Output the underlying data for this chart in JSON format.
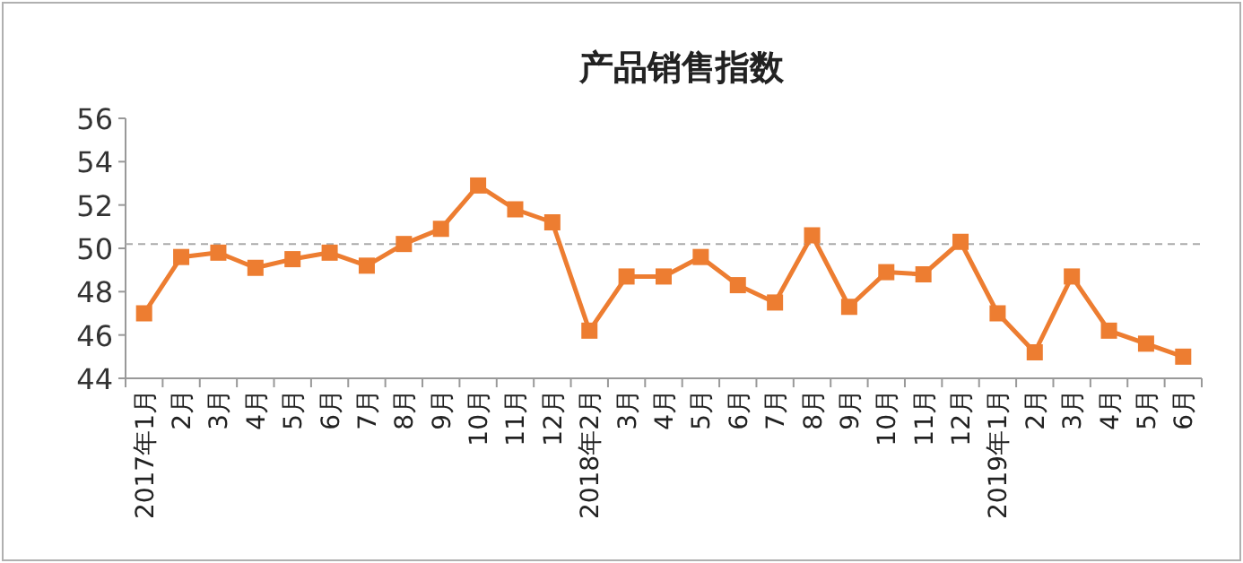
{
  "chart_data": {
    "type": "line",
    "title": "产品销售指数",
    "categories": [
      "2017年1月",
      "2月",
      "3月",
      "4月",
      "5月",
      "6月",
      "7月",
      "8月",
      "9月",
      "10月",
      "11月",
      "12月",
      "2018年2月",
      "3月",
      "4月",
      "5月",
      "6月",
      "7月",
      "8月",
      "9月",
      "10月",
      "11月",
      "12月",
      "2019年1月",
      "2月",
      "3月",
      "4月",
      "5月",
      "6月"
    ],
    "series": [
      {
        "color": "#ed7d31",
        "values": [
          47.0,
          49.6,
          49.8,
          49.1,
          49.5,
          49.8,
          49.2,
          50.2,
          50.9,
          52.9,
          51.8,
          51.2,
          46.2,
          48.7,
          48.7,
          49.6,
          48.3,
          47.5,
          50.6,
          47.3,
          48.9,
          48.8,
          50.3,
          47.0,
          45.2,
          48.7,
          46.2,
          45.6,
          45.0
        ]
      }
    ],
    "ylim": [
      44,
      56
    ],
    "yticks": [
      44,
      46,
      48,
      50,
      52,
      54,
      56
    ],
    "ref_lines": [
      {
        "axis": "y",
        "value": 50.2,
        "color": "#aaaaaa",
        "line_style": "dashed"
      }
    ],
    "marker": "square",
    "line_style": "solid",
    "grid": false
  }
}
